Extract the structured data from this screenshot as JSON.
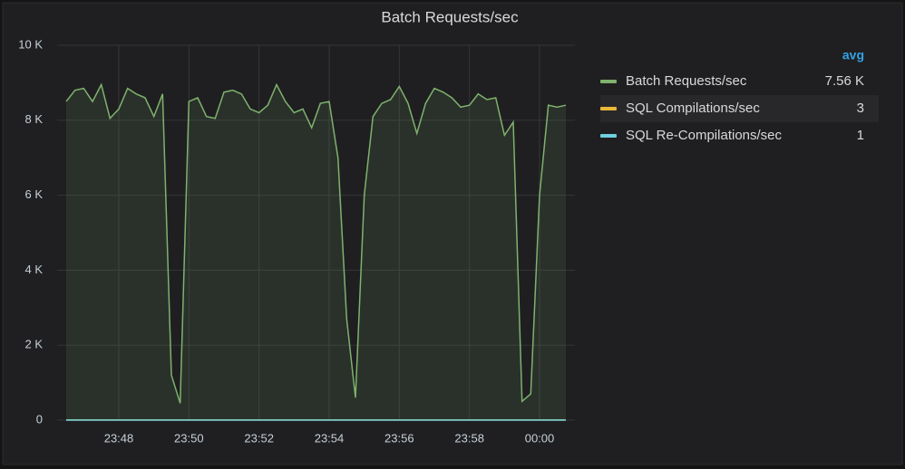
{
  "chart_data": {
    "type": "line",
    "title": "Batch Requests/sec",
    "categories": [
      null,
      null,
      null,
      null,
      null,
      null,
      "23:48",
      null,
      null,
      null,
      null,
      null,
      null,
      null,
      "23:50",
      null,
      null,
      null,
      null,
      null,
      null,
      null,
      "23:52",
      null,
      null,
      null,
      null,
      null,
      null,
      null,
      "23:54",
      null,
      null,
      null,
      null,
      null,
      null,
      null,
      "23:56",
      null,
      null,
      null,
      null,
      null,
      null,
      null,
      "23:58",
      null,
      null,
      null,
      null,
      null,
      null,
      null,
      "00:00",
      null,
      null,
      null
    ],
    "ylim": [
      0,
      10000
    ],
    "yticks": [
      0,
      {
        "value": 2000,
        "label": "2 K"
      },
      {
        "value": 4000,
        "label": "4 K"
      },
      {
        "value": 6000,
        "label": "6 K"
      },
      {
        "value": 8000,
        "label": "8 K"
      },
      {
        "value": 10000,
        "label": "10 K"
      }
    ],
    "grid": true,
    "legend_header": "avg",
    "series": [
      {
        "name": "Batch Requests/sec",
        "color": "#7eb26d",
        "fill": true,
        "avg": {
          "value": 7560,
          "label": "7.56 K"
        },
        "values": [
          8500,
          8800,
          8850,
          8500,
          8950,
          8050,
          8300,
          8850,
          8700,
          8600,
          8100,
          8700,
          1200,
          450,
          8500,
          8600,
          8100,
          8050,
          8750,
          8800,
          8700,
          8300,
          8200,
          8400,
          8950,
          8500,
          8200,
          8300,
          7800,
          8450,
          8500,
          7000,
          2700,
          600,
          6000,
          8100,
          8450,
          8550,
          8900,
          8450,
          7650,
          8450,
          8850,
          8750,
          8600,
          8350,
          8400,
          8700,
          8550,
          8600,
          7600,
          7950,
          500,
          700,
          6000,
          8400,
          8350,
          8400
        ]
      },
      {
        "name": "SQL Compilations/sec",
        "color": "#eab839",
        "fill": false,
        "avg": 3,
        "values": [
          3,
          3,
          3,
          3,
          3,
          3,
          3,
          3,
          3,
          3,
          3,
          3,
          3,
          3,
          3,
          3,
          3,
          3,
          3,
          3,
          3,
          3,
          3,
          3,
          3,
          3,
          3,
          3,
          3,
          3,
          3,
          3,
          3,
          3,
          3,
          3,
          3,
          3,
          3,
          3,
          3,
          3,
          3,
          3,
          3,
          3,
          3,
          3,
          3,
          3,
          3,
          3,
          3,
          3,
          3,
          3,
          3,
          3
        ]
      },
      {
        "name": "SQL Re-Compilations/sec",
        "color": "#6ed0e0",
        "fill": false,
        "avg": 1,
        "values": [
          1,
          1,
          1,
          1,
          1,
          1,
          1,
          1,
          1,
          1,
          1,
          1,
          1,
          1,
          1,
          1,
          1,
          1,
          1,
          1,
          1,
          1,
          1,
          1,
          1,
          1,
          1,
          1,
          1,
          1,
          1,
          1,
          1,
          1,
          1,
          1,
          1,
          1,
          1,
          1,
          1,
          1,
          1,
          1,
          1,
          1,
          1,
          1,
          1,
          1,
          1,
          1,
          1,
          1,
          1,
          1,
          1,
          1
        ]
      }
    ]
  }
}
